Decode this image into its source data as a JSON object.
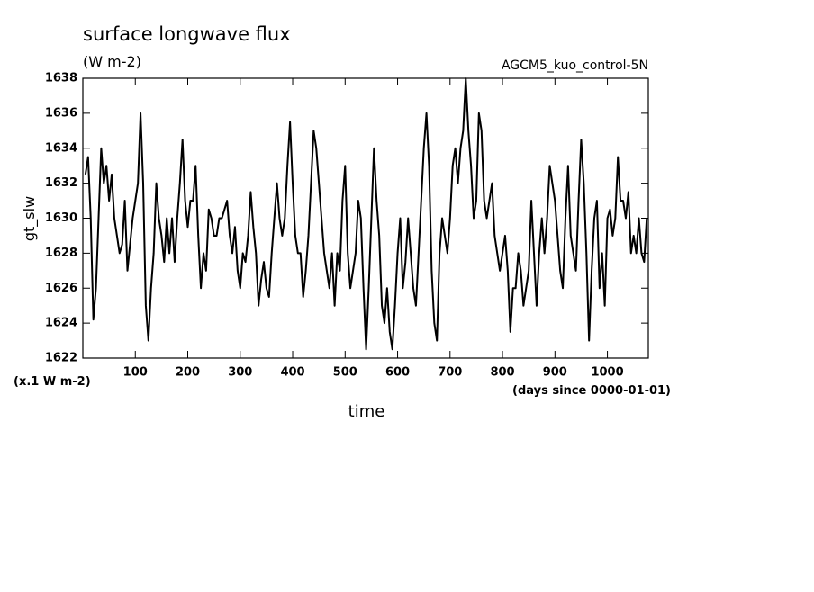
{
  "chart_data": {
    "type": "line",
    "title": "surface longwave flux",
    "subtitle": "(W m-2)",
    "annotation": "AGCM5_kuo_control-5N",
    "ylabel": "gt_slw",
    "yunits": "(x.1 W m-2)",
    "xunits": "(days since 0000-01-01)",
    "xlabel": "time",
    "xlim": [
      0,
      1078
    ],
    "ylim": [
      1622,
      1638
    ],
    "xticks": [
      100,
      200,
      300,
      400,
      500,
      600,
      700,
      800,
      900,
      1000
    ],
    "yticks": [
      1622,
      1624,
      1626,
      1628,
      1630,
      1632,
      1634,
      1636,
      1638
    ],
    "color": "#000000",
    "x": [
      5,
      10,
      15,
      20,
      25,
      30,
      35,
      40,
      45,
      50,
      55,
      60,
      65,
      70,
      75,
      80,
      85,
      90,
      95,
      100,
      105,
      110,
      115,
      120,
      125,
      130,
      135,
      140,
      145,
      150,
      155,
      160,
      165,
      170,
      175,
      180,
      185,
      190,
      195,
      200,
      205,
      210,
      215,
      220,
      225,
      230,
      235,
      240,
      245,
      250,
      255,
      260,
      265,
      270,
      275,
      280,
      285,
      290,
      295,
      300,
      305,
      310,
      315,
      320,
      325,
      330,
      335,
      340,
      345,
      350,
      355,
      360,
      365,
      370,
      375,
      380,
      385,
      390,
      395,
      400,
      405,
      410,
      415,
      420,
      425,
      430,
      435,
      440,
      445,
      450,
      455,
      460,
      465,
      470,
      475,
      480,
      485,
      490,
      495,
      500,
      505,
      510,
      515,
      520,
      525,
      530,
      535,
      540,
      545,
      550,
      555,
      560,
      565,
      570,
      575,
      580,
      585,
      590,
      595,
      600,
      605,
      610,
      615,
      620,
      625,
      630,
      635,
      640,
      645,
      650,
      655,
      660,
      665,
      670,
      675,
      680,
      685,
      690,
      695,
      700,
      705,
      710,
      715,
      720,
      725,
      730,
      735,
      740,
      745,
      750,
      755,
      760,
      765,
      770,
      775,
      780,
      785,
      790,
      795,
      800,
      805,
      810,
      815,
      820,
      825,
      830,
      835,
      840,
      845,
      850,
      855,
      860,
      865,
      870,
      875,
      880,
      885,
      890,
      895,
      900,
      905,
      910,
      915,
      920,
      925,
      930,
      935,
      940,
      945,
      950,
      955,
      960,
      965,
      970,
      975,
      980,
      985,
      990,
      995,
      1000,
      1005,
      1010,
      1015,
      1020,
      1025,
      1030,
      1035,
      1040,
      1045,
      1050,
      1055,
      1060,
      1065,
      1070,
      1075
    ],
    "values": [
      1632.5,
      1633.5,
      1630,
      1624.2,
      1626,
      1630,
      1634,
      1632,
      1633,
      1631,
      1632.5,
      1630,
      1629,
      1628,
      1628.5,
      1631,
      1627,
      1628.5,
      1630,
      1631,
      1632,
      1636,
      1632,
      1625,
      1623,
      1626,
      1628,
      1632,
      1630,
      1629,
      1627.5,
      1630,
      1628,
      1630,
      1627.5,
      1630,
      1632,
      1634.5,
      1631,
      1629.5,
      1631,
      1631,
      1633,
      1629,
      1626,
      1628,
      1627,
      1630.5,
      1630,
      1629,
      1629,
      1630,
      1630,
      1630.5,
      1631,
      1629,
      1628,
      1629.5,
      1627,
      1626,
      1628,
      1627.5,
      1629,
      1631.5,
      1629.5,
      1628,
      1625,
      1626.5,
      1627.5,
      1626,
      1625.5,
      1628,
      1630,
      1632,
      1630,
      1629,
      1630,
      1633,
      1635.5,
      1632,
      1629,
      1628,
      1628,
      1625.5,
      1627,
      1629,
      1632,
      1635,
      1634,
      1632,
      1630,
      1628,
      1627,
      1626,
      1628,
      1625,
      1628,
      1627,
      1631,
      1633,
      1628,
      1626,
      1627,
      1628,
      1631,
      1630,
      1626,
      1622.5,
      1626,
      1630,
      1634,
      1631,
      1629,
      1625,
      1624,
      1626,
      1623.5,
      1622.5,
      1625,
      1628,
      1630,
      1626,
      1627.5,
      1630,
      1628,
      1626,
      1625,
      1628,
      1631,
      1634,
      1636,
      1633,
      1627,
      1624,
      1623,
      1628,
      1630,
      1629,
      1628,
      1630,
      1633,
      1634,
      1632,
      1634,
      1635,
      1638,
      1635,
      1633,
      1630,
      1631,
      1636,
      1635,
      1631,
      1630,
      1631,
      1632,
      1629,
      1628,
      1627,
      1628,
      1629,
      1627,
      1623.5,
      1626,
      1626,
      1628,
      1627,
      1625,
      1626,
      1627,
      1631,
      1628,
      1625,
      1628,
      1630,
      1628,
      1630,
      1633,
      1632,
      1631,
      1629,
      1627,
      1626,
      1630,
      1633,
      1629,
      1628,
      1627,
      1631,
      1634.5,
      1632,
      1628,
      1623,
      1627,
      1630,
      1631,
      1626,
      1628,
      1625,
      1630,
      1630.5,
      1629,
      1630,
      1633.5,
      1631,
      1631,
      1630,
      1631.5,
      1628,
      1629,
      1628,
      1630,
      1628,
      1627.5,
      1630
    ]
  }
}
